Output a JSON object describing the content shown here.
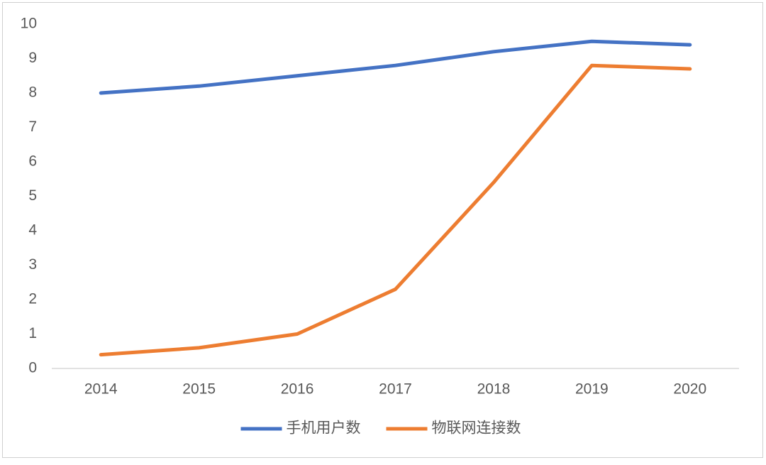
{
  "chart_data": {
    "type": "line",
    "categories": [
      "2014",
      "2015",
      "2016",
      "2017",
      "2018",
      "2019",
      "2020"
    ],
    "series": [
      {
        "name": "手机用户数",
        "color": "#4472c4",
        "values": [
          8.0,
          8.2,
          8.5,
          8.8,
          9.2,
          9.5,
          9.4
        ]
      },
      {
        "name": "物联网连接数",
        "color": "#ed7d31",
        "values": [
          0.4,
          0.6,
          1.0,
          2.3,
          5.4,
          8.8,
          8.7
        ]
      }
    ],
    "ylim": [
      0,
      10
    ],
    "yticks": [
      0,
      1,
      2,
      3,
      4,
      5,
      6,
      7,
      8,
      9,
      10
    ],
    "grid": false,
    "legend": "bottom"
  }
}
